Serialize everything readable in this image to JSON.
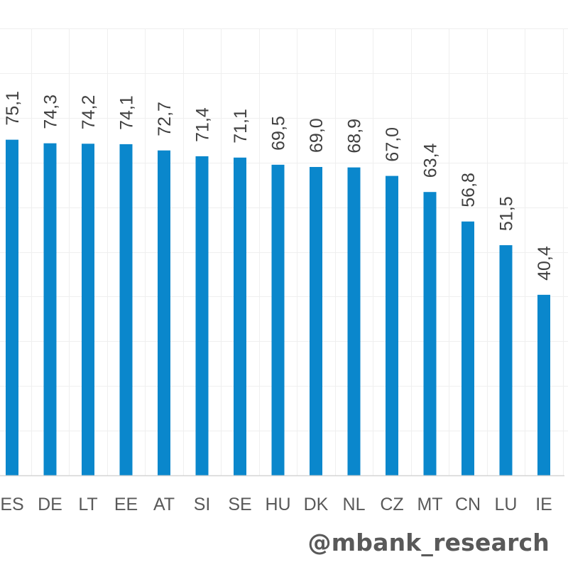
{
  "chart_data": {
    "type": "bar",
    "categories": [
      "ES",
      "DE",
      "LT",
      "EE",
      "AT",
      "SI",
      "SE",
      "HU",
      "DK",
      "NL",
      "CZ",
      "MT",
      "CN",
      "LU",
      "IE"
    ],
    "values": [
      75.1,
      74.3,
      74.2,
      74.1,
      72.7,
      71.4,
      71.1,
      69.5,
      69.0,
      68.9,
      67.0,
      63.4,
      56.8,
      51.5,
      40.4
    ],
    "value_labels": [
      "75,1",
      "74,3",
      "74,2",
      "74,1",
      "72,7",
      "71,4",
      "71,1",
      "69,5",
      "69,0",
      "68,9",
      "67,0",
      "63,4",
      "56,8",
      "51,5",
      "40,4"
    ],
    "ylim": [
      0,
      100
    ],
    "grid": true,
    "legend": "none",
    "title": "",
    "xlabel": "",
    "ylabel": ""
  },
  "colors": {
    "bar": "#0a87cc",
    "grid": "#efefef",
    "axis": "#d4d4d4"
  },
  "watermark": "@mbank_research"
}
